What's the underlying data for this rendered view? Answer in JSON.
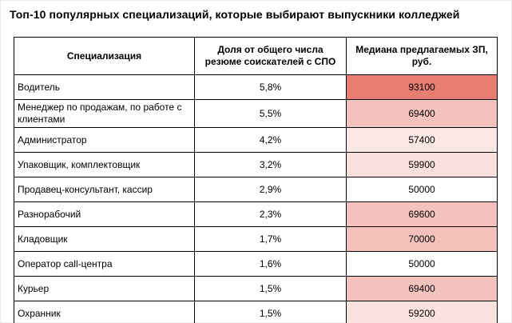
{
  "title": "Топ-10 популярных специализаций, которые выбирают выпускники колледжей",
  "table": {
    "headers": {
      "specialization": "Специализация",
      "share": "Доля от общего числа резюме соискателей с СПО",
      "salary": "Медиана предлагаемых ЗП, руб."
    },
    "rows": [
      {
        "specialization": "Водитель",
        "share": "5,8%",
        "salary": "93100",
        "salary_color": "#E87D72"
      },
      {
        "specialization": "Менеджер по продажам, по работе с клиентами",
        "share": "5,5%",
        "salary": "69400",
        "salary_color": "#F4C3BD"
      },
      {
        "specialization": "Администратор",
        "share": "4,2%",
        "salary": "57400",
        "salary_color": "#FBE8E5"
      },
      {
        "specialization": "Упаковщик, комплектовщик",
        "share": "3,2%",
        "salary": "59900",
        "salary_color": "#FAE0DD"
      },
      {
        "specialization": "Продавец-консультант, кассир",
        "share": "2,9%",
        "salary": "50000",
        "salary_color": "#FFFFFF"
      },
      {
        "specialization": "Разнорабочий",
        "share": "2,3%",
        "salary": "69600",
        "salary_color": "#F4C2BC"
      },
      {
        "specialization": "Кладовщик",
        "share": "1,7%",
        "salary": "70000",
        "salary_color": "#F4C1BB"
      },
      {
        "specialization": "Оператор call-центра",
        "share": "1,6%",
        "salary": "50000",
        "salary_color": "#FFFFFF"
      },
      {
        "specialization": "Курьер",
        "share": "1,5%",
        "salary": "69400",
        "salary_color": "#F4C3BD"
      },
      {
        "specialization": "Охранник",
        "share": "1,5%",
        "salary": "59200",
        "salary_color": "#FAE2DF"
      }
    ]
  },
  "colors": {
    "border": "#000000",
    "heatmap_min_color": "#FFFFFF",
    "heatmap_max_color": "#E87D72"
  },
  "chart_data": {
    "type": "table",
    "title": "Топ-10 популярных специализаций, которые выбирают выпускники колледжей",
    "columns": [
      "Специализация",
      "Доля от общего числа резюме соискателей с СПО",
      "Медиана предлагаемых ЗП, руб."
    ],
    "rows": [
      [
        "Водитель",
        5.8,
        93100
      ],
      [
        "Менеджер по продажам, по работе с клиентами",
        5.5,
        69400
      ],
      [
        "Администратор",
        4.2,
        57400
      ],
      [
        "Упаковщик, комплектовщик",
        3.2,
        59900
      ],
      [
        "Продавец-консультант, кассир",
        2.9,
        50000
      ],
      [
        "Разнорабочий",
        2.3,
        69600
      ],
      [
        "Кладовщик",
        1.7,
        70000
      ],
      [
        "Оператор call-центра",
        1.6,
        50000
      ],
      [
        "Курьер",
        1.5,
        69400
      ],
      [
        "Охранник",
        1.5,
        59200
      ]
    ],
    "share_unit": "%",
    "salary_unit": "руб.",
    "heatmap_column": "Медиана предлагаемых ЗП, руб.",
    "heatmap_scale": {
      "min_value": 50000,
      "min_color": "#FFFFFF",
      "max_value": 93100,
      "max_color": "#E87D72"
    }
  }
}
